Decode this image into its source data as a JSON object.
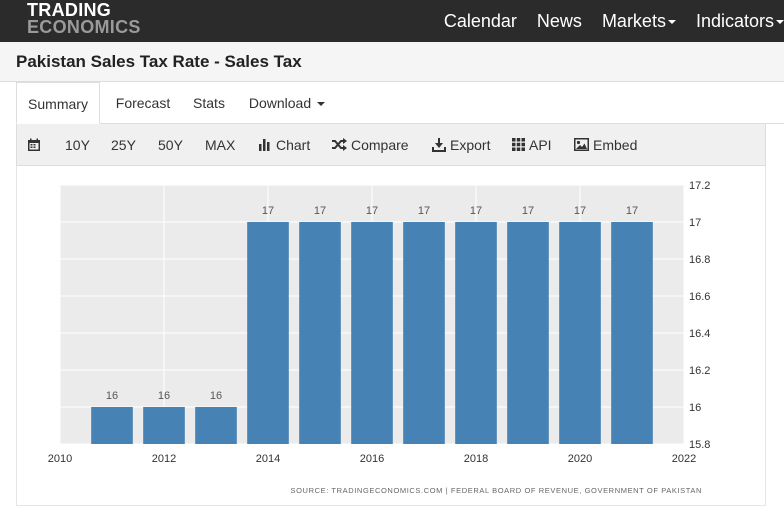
{
  "brand": {
    "line1": "TRADING",
    "line2": "ECONOMICS"
  },
  "nav": {
    "items": [
      {
        "label": "Calendar"
      },
      {
        "label": "News"
      },
      {
        "label": "Markets"
      },
      {
        "label": "Indicators"
      }
    ]
  },
  "page_title": "Pakistan Sales Tax Rate - Sales Tax",
  "tabs": [
    {
      "label": "Summary"
    },
    {
      "label": "Forecast"
    },
    {
      "label": "Stats"
    },
    {
      "label": "Download"
    }
  ],
  "toolbar": {
    "ranges": [
      "10Y",
      "25Y",
      "50Y",
      "MAX"
    ],
    "chart_label": "Chart",
    "compare_label": "Compare",
    "export_label": "Export",
    "api_label": "API",
    "embed_label": "Embed"
  },
  "icons": [
    "calendar-icon",
    "bar-chart-icon",
    "shuffle-icon",
    "download-icon",
    "grid-icon",
    "image-icon"
  ],
  "colors": {
    "bar": "#4682b4",
    "nav_bg": "#2b2b2b",
    "plot_bg": "#ebebeb"
  },
  "chart_data": {
    "type": "bar",
    "categories": [
      "2011",
      "2012",
      "2013",
      "2014",
      "2015",
      "2016",
      "2017",
      "2018",
      "2019",
      "2020",
      "2021"
    ],
    "values": [
      16,
      16,
      16,
      17,
      17,
      17,
      17,
      17,
      17,
      17,
      17
    ],
    "data_labels": [
      "16",
      "16",
      "16",
      "17",
      "17",
      "17",
      "17",
      "17",
      "17",
      "17",
      "17"
    ],
    "x_ticks": [
      "2010",
      "2012",
      "2014",
      "2016",
      "2018",
      "2020",
      "2022"
    ],
    "y_ticks": [
      "15.8",
      "16",
      "16.2",
      "16.4",
      "16.6",
      "16.8",
      "17",
      "17.2"
    ],
    "ylim": [
      15.8,
      17.2
    ],
    "xlim": [
      2010,
      2022
    ],
    "grid": true,
    "source": "SOURCE: TRADINGECONOMICS.COM | FEDERAL BOARD OF REVENUE, GOVERNMENT OF PAKISTAN"
  }
}
